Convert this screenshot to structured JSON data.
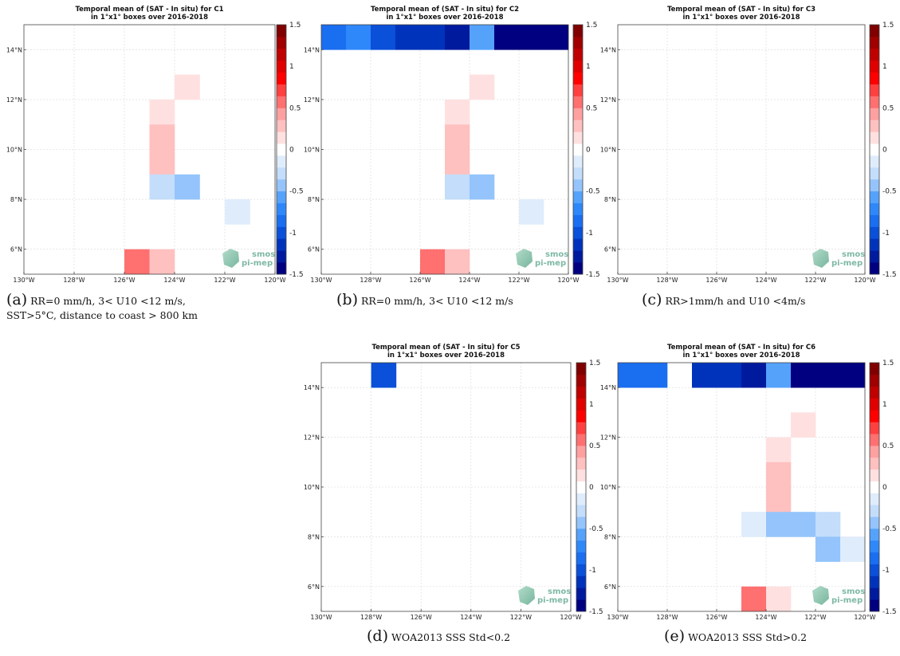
{
  "colors": {
    "scale": [
      "#000080",
      "#001a9e",
      "#0033bb",
      "#0a50d8",
      "#1a6ef0",
      "#2f88fa",
      "#55a2fb",
      "#94c4fb",
      "#c3ddfb",
      "#dfecfc",
      "#ffffff",
      "#ffe0e0",
      "#ffc0c0",
      "#ffa0a0",
      "#ff7070",
      "#ff4040",
      "#ff0000",
      "#e00000",
      "#c00000",
      "#a00000",
      "#800000"
    ],
    "grid": "#d8d8d8",
    "watermark": "#7fb9a4"
  },
  "watermark": {
    "line1": "smos",
    "line2": "pi-mep"
  },
  "chart_data": [
    {
      "id": "C1",
      "type": "heatmap",
      "title": "Temporal mean of (SAT - In situ) for C1",
      "subtitle": "in 1°x1° boxes over 2016-2018",
      "caption_tag": "(a)",
      "caption": "RR=0 mm/h, 3< U10 <12 m/s, SST>5°C, distance to coast > 800 km",
      "caption_lines": [
        "RR=0  mm/h,  3<  U10  <12  m/s,",
        "SST>5°C, distance to coast > 800 km"
      ],
      "xlim": [
        -130,
        -120
      ],
      "ylim": [
        5,
        15
      ],
      "xticks": [
        "130°W",
        "128°W",
        "126°W",
        "124°W",
        "122°W",
        "120°W"
      ],
      "yticks": [
        "6°N",
        "8°N",
        "10°N",
        "12°N",
        "14°N"
      ],
      "colorbar": {
        "range": [
          -1.5,
          1.5
        ],
        "ticks": [
          "1.5",
          "1",
          "0.5",
          "0",
          "-0.5",
          "-1",
          "-1.5"
        ]
      },
      "cells": [
        {
          "lon": -124,
          "lat": 12,
          "value": 0.1
        },
        {
          "lon": -125,
          "lat": 11,
          "value": 0.1
        },
        {
          "lon": -125,
          "lat": 10,
          "value": 0.25
        },
        {
          "lon": -125,
          "lat": 9,
          "value": 0.25
        },
        {
          "lon": -125,
          "lat": 8,
          "value": -0.25
        },
        {
          "lon": -124,
          "lat": 8,
          "value": -0.5
        },
        {
          "lon": -122,
          "lat": 7,
          "value": -0.1
        },
        {
          "lon": -126,
          "lat": 5,
          "value": 0.6
        },
        {
          "lon": -125,
          "lat": 5,
          "value": 0.25
        }
      ]
    },
    {
      "id": "C2",
      "type": "heatmap",
      "title": "Temporal mean of (SAT - In situ) for C2",
      "subtitle": "in 1°x1° boxes over 2016-2018",
      "caption_tag": "(b)",
      "caption": "RR=0 mm/h, 3< U10 <12 m/s",
      "caption_lines": [
        "RR=0 mm/h, 3< U10 <12 m/s"
      ],
      "xlim": [
        -130,
        -120
      ],
      "ylim": [
        5,
        15
      ],
      "xticks": [
        "130°W",
        "128°W",
        "126°W",
        "124°W",
        "122°W",
        "120°W"
      ],
      "yticks": [
        "6°N",
        "8°N",
        "10°N",
        "12°N",
        "14°N"
      ],
      "colorbar": {
        "range": [
          -1.5,
          1.5
        ],
        "ticks": [
          "1.5",
          "1",
          "0.5",
          "0",
          "-0.5",
          "-1",
          "-1.5"
        ]
      },
      "cells": [
        {
          "lon": -130,
          "lat": 14,
          "value": -0.9
        },
        {
          "lon": -129,
          "lat": 14,
          "value": -0.75
        },
        {
          "lon": -128,
          "lat": 14,
          "value": -1.05
        },
        {
          "lon": -127,
          "lat": 14,
          "value": -1.2
        },
        {
          "lon": -126,
          "lat": 14,
          "value": -1.2
        },
        {
          "lon": -125,
          "lat": 14,
          "value": -1.35
        },
        {
          "lon": -124,
          "lat": 14,
          "value": -0.6
        },
        {
          "lon": -123,
          "lat": 14,
          "value": -1.5
        },
        {
          "lon": -122,
          "lat": 14,
          "value": -1.5
        },
        {
          "lon": -121,
          "lat": 14,
          "value": -1.5
        },
        {
          "lon": -124,
          "lat": 12,
          "value": 0.1
        },
        {
          "lon": -125,
          "lat": 11,
          "value": 0.1
        },
        {
          "lon": -125,
          "lat": 10,
          "value": 0.25
        },
        {
          "lon": -125,
          "lat": 9,
          "value": 0.25
        },
        {
          "lon": -125,
          "lat": 8,
          "value": -0.25
        },
        {
          "lon": -124,
          "lat": 8,
          "value": -0.5
        },
        {
          "lon": -122,
          "lat": 7,
          "value": -0.1
        },
        {
          "lon": -126,
          "lat": 5,
          "value": 0.6
        },
        {
          "lon": -125,
          "lat": 5,
          "value": 0.25
        }
      ]
    },
    {
      "id": "C3",
      "type": "heatmap",
      "title": "Temporal mean of (SAT - In situ) for C3",
      "subtitle": "in 1°x1° boxes over 2016-2018",
      "caption_tag": "(c)",
      "caption": "RR>1mm/h and U10 <4m/s",
      "caption_lines": [
        "RR>1mm/h and U10 <4m/s"
      ],
      "xlim": [
        -130,
        -120
      ],
      "ylim": [
        5,
        15
      ],
      "xticks": [
        "130°W",
        "128°W",
        "126°W",
        "124°W",
        "122°W",
        "120°W"
      ],
      "yticks": [
        "6°N",
        "8°N",
        "10°N",
        "12°N",
        "14°N"
      ],
      "colorbar": {
        "range": [
          -1.5,
          1.5
        ],
        "ticks": [
          "1.5",
          "1",
          "0.5",
          "0",
          "-0.5",
          "-1",
          "-1.5"
        ]
      },
      "cells": []
    },
    {
      "id": "C5",
      "type": "heatmap",
      "title": "Temporal mean of (SAT - In situ) for C5",
      "subtitle": "in 1°x1° boxes over 2016-2018",
      "caption_tag": "(d)",
      "caption": "WOA2013 SSS Std<0.2",
      "caption_lines": [
        "WOA2013 SSS Std<0.2"
      ],
      "xlim": [
        -130,
        -120
      ],
      "ylim": [
        5,
        15
      ],
      "xticks": [
        "130°W",
        "128°W",
        "126°W",
        "124°W",
        "122°W",
        "120°W"
      ],
      "yticks": [
        "6°N",
        "8°N",
        "10°N",
        "12°N",
        "14°N"
      ],
      "colorbar": {
        "range": [
          -1.5,
          1.5
        ],
        "ticks": [
          "1.5",
          "1",
          "0.5",
          "0",
          "-0.5",
          "-1",
          "-1.5"
        ]
      },
      "cells": [
        {
          "lon": -128,
          "lat": 14,
          "value": -1.05
        }
      ]
    },
    {
      "id": "C6",
      "type": "heatmap",
      "title": "Temporal mean of (SAT - In situ) for C6",
      "subtitle": "in 1°x1° boxes over 2016-2018",
      "caption_tag": "(e)",
      "caption": "WOA2013 SSS Std>0.2",
      "caption_lines": [
        "WOA2013 SSS Std>0.2"
      ],
      "xlim": [
        -130,
        -120
      ],
      "ylim": [
        5,
        15
      ],
      "xticks": [
        "130°W",
        "128°W",
        "126°W",
        "124°W",
        "122°W",
        "120°W"
      ],
      "yticks": [
        "6°N",
        "8°N",
        "10°N",
        "12°N",
        "14°N"
      ],
      "colorbar": {
        "range": [
          -1.5,
          1.5
        ],
        "ticks": [
          "1.5",
          "1",
          "0.5",
          "0",
          "-0.5",
          "-1",
          "-1.5"
        ]
      },
      "cells": [
        {
          "lon": -130,
          "lat": 14,
          "value": -0.9
        },
        {
          "lon": -129,
          "lat": 14,
          "value": -0.9
        },
        {
          "lon": -127,
          "lat": 14,
          "value": -1.2
        },
        {
          "lon": -126,
          "lat": 14,
          "value": -1.2
        },
        {
          "lon": -125,
          "lat": 14,
          "value": -1.35
        },
        {
          "lon": -124,
          "lat": 14,
          "value": -0.6
        },
        {
          "lon": -123,
          "lat": 14,
          "value": -1.5
        },
        {
          "lon": -122,
          "lat": 14,
          "value": -1.5
        },
        {
          "lon": -121,
          "lat": 14,
          "value": -1.5
        },
        {
          "lon": -123,
          "lat": 12,
          "value": 0.1
        },
        {
          "lon": -124,
          "lat": 11,
          "value": 0.1
        },
        {
          "lon": -124,
          "lat": 10,
          "value": 0.25
        },
        {
          "lon": -124,
          "lat": 9,
          "value": 0.25
        },
        {
          "lon": -125,
          "lat": 8,
          "value": -0.1
        },
        {
          "lon": -124,
          "lat": 8,
          "value": -0.4
        },
        {
          "lon": -123,
          "lat": 8,
          "value": -0.4
        },
        {
          "lon": -122,
          "lat": 8,
          "value": -0.25
        },
        {
          "lon": -122,
          "lat": 7,
          "value": -0.5
        },
        {
          "lon": -121,
          "lat": 7,
          "value": -0.1
        },
        {
          "lon": -125,
          "lat": 5,
          "value": 0.6
        },
        {
          "lon": -124,
          "lat": 5,
          "value": 0.1
        }
      ]
    }
  ]
}
